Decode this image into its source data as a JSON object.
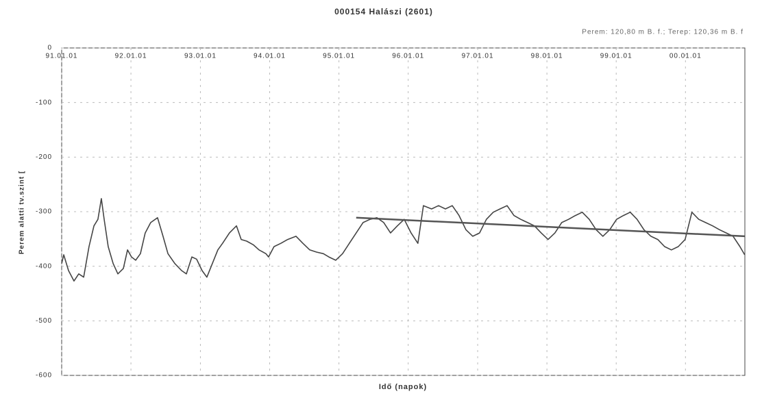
{
  "chart_data": {
    "type": "line",
    "title": "000154 Halászi (2601)",
    "annotation": "Perem: 120,80 m B. f.; Terep: 120,36 m B. f",
    "xlabel": "Idő (napok)",
    "ylabel": "Perem alatti tv.szint [",
    "xlim": [
      0,
      3600
    ],
    "ylim": [
      -600,
      0
    ],
    "yticks": [
      0,
      -100,
      -200,
      -300,
      -400,
      -500,
      -600
    ],
    "xticks": [
      {
        "value": 0,
        "label": "91.01.01"
      },
      {
        "value": 365,
        "label": "92.01.01"
      },
      {
        "value": 731,
        "label": "93.01.01"
      },
      {
        "value": 1096,
        "label": "94.01.01"
      },
      {
        "value": 1461,
        "label": "95.01.01"
      },
      {
        "value": 1826,
        "label": "96.01.01"
      },
      {
        "value": 2192,
        "label": "97.01.01"
      },
      {
        "value": 2557,
        "label": "98.01.01"
      },
      {
        "value": 2922,
        "label": "99.01.01"
      },
      {
        "value": 3287,
        "label": "00.01.01"
      }
    ],
    "grid": true,
    "series": [
      {
        "color": "#444",
        "x": [
          0,
          11,
          36,
          65,
          90,
          116,
          144,
          170,
          191,
          209,
          224,
          245,
          271,
          296,
          325,
          347,
          368,
          390,
          415,
          440,
          469,
          505,
          534,
          560,
          596,
          632,
          657,
          686,
          711,
          740,
          765,
          794,
          823,
          848,
          884,
          921,
          946,
          975,
          1011,
          1040,
          1076,
          1090,
          1119,
          1155,
          1191,
          1235,
          1271,
          1307,
          1343,
          1379,
          1408,
          1444,
          1480,
          1516,
          1552,
          1588,
          1625,
          1661,
          1697,
          1733,
          1769,
          1805,
          1841,
          1877,
          1906,
          1949,
          1986,
          2022,
          2058,
          2094,
          2130,
          2166,
          2202,
          2238,
          2274,
          2310,
          2347,
          2383,
          2419,
          2455,
          2491,
          2527,
          2563,
          2599,
          2635,
          2671,
          2707,
          2743,
          2780,
          2816,
          2852,
          2888,
          2924,
          2960,
          2996,
          3032,
          3068,
          3105,
          3141,
          3177,
          3213,
          3249,
          3285,
          3321,
          3357,
          3393,
          3430,
          3466,
          3502,
          3538,
          3574,
          3599
        ],
        "values": [
          -395,
          -379,
          -408,
          -427,
          -414,
          -420,
          -364,
          -326,
          -314,
          -276,
          -314,
          -364,
          -395,
          -414,
          -404,
          -370,
          -383,
          -389,
          -377,
          -339,
          -320,
          -311,
          -345,
          -377,
          -395,
          -408,
          -414,
          -383,
          -387,
          -408,
          -420,
          -395,
          -370,
          -358,
          -339,
          -326,
          -351,
          -354,
          -361,
          -370,
          -377,
          -383,
          -364,
          -358,
          -351,
          -345,
          -358,
          -370,
          -374,
          -377,
          -383,
          -389,
          -377,
          -358,
          -339,
          -320,
          -314,
          -311,
          -320,
          -339,
          -326,
          -314,
          -339,
          -358,
          -289,
          -295,
          -289,
          -295,
          -289,
          -307,
          -333,
          -345,
          -339,
          -314,
          -301,
          -295,
          -289,
          -307,
          -314,
          -320,
          -326,
          -339,
          -351,
          -339,
          -320,
          -314,
          -307,
          -301,
          -314,
          -333,
          -345,
          -333,
          -314,
          -307,
          -301,
          -314,
          -333,
          -345,
          -351,
          -364,
          -370,
          -364,
          -351,
          -301,
          -314,
          -320,
          -326,
          -333,
          -339,
          -345,
          -364,
          -379
        ]
      },
      {
        "color": "#555",
        "x": [
          1552,
          3599
        ],
        "values": [
          -311,
          -345
        ]
      }
    ]
  }
}
